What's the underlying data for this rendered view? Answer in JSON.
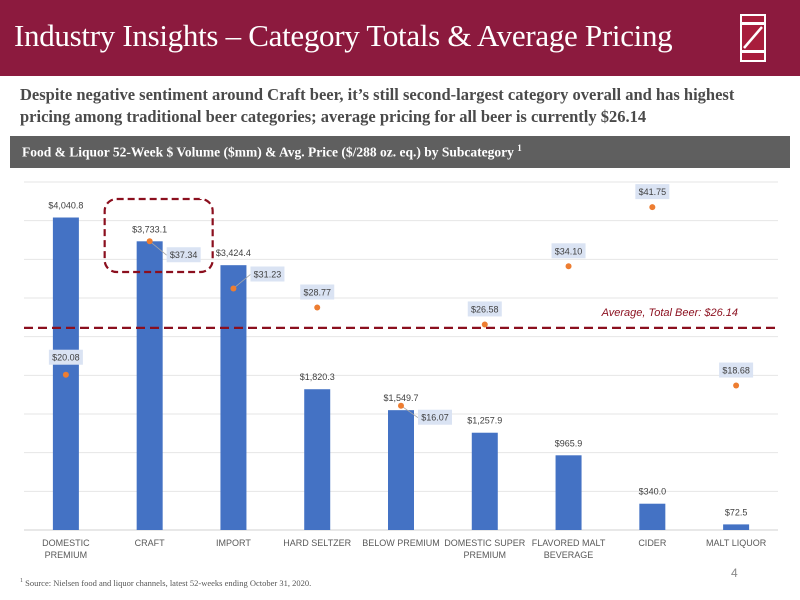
{
  "header": {
    "title": "Industry Insights – Category Totals & Average Pricing",
    "logo": "z-logo-icon"
  },
  "subtitle": "Despite negative sentiment around Craft beer, it’s still second-largest category overall and has highest pricing among traditional beer categories; average pricing for all beer is currently $26.14",
  "banner": {
    "text": "Food & Liquor 52-Week $ Volume ($mm) & Avg. Price ($/288 oz. eq.) by Subcategory",
    "footnote_marker": "1"
  },
  "chart_data": {
    "type": "bar",
    "title": "Food & Liquor 52-Week $ Volume ($mm) & Avg. Price ($/288 oz. eq.) by Subcategory",
    "xlabel": "",
    "ylabel": "",
    "grid": true,
    "categories": [
      [
        "DOMESTIC",
        "PREMIUM"
      ],
      [
        "CRAFT"
      ],
      [
        "IMPORT"
      ],
      [
        "HARD SELTZER"
      ],
      [
        "BELOW PREMIUM"
      ],
      [
        "DOMESTIC SUPER",
        "PREMIUM"
      ],
      [
        "FLAVORED MALT",
        "BEVERAGE"
      ],
      [
        "CIDER"
      ],
      [
        "MALT LIQUOR"
      ]
    ],
    "series": [
      {
        "name": "$ Volume ($mm)",
        "type": "bar",
        "axis": "primary",
        "color": "#4472c4",
        "values": [
          4040.8,
          3733.1,
          3424.4,
          1820.3,
          1549.7,
          1257.9,
          965.9,
          340.0,
          72.5
        ],
        "labels": [
          "$4,040.8",
          "$3,733.1",
          "$3,424.4",
          "$1,820.3",
          "$1,549.7",
          "$1,257.9",
          "$965.9",
          "$340.0",
          "$72.5"
        ]
      },
      {
        "name": "Avg. Price ($/288 oz. eq.)",
        "type": "scatter",
        "axis": "secondary",
        "color": "#ed7d31",
        "values": [
          20.08,
          37.34,
          31.23,
          28.77,
          16.07,
          26.58,
          34.1,
          41.75,
          18.68
        ],
        "labels": [
          "$20.08",
          "$37.34",
          "$31.23",
          "$28.77",
          "$16.07",
          "$26.58",
          "$34.10",
          "$41.75",
          "$18.68"
        ]
      }
    ],
    "ylim": [
      0,
      4500
    ],
    "y2lim": [
      0,
      45
    ],
    "reference_line": {
      "label": "Average, Total Beer: $26.14",
      "value": 26.14,
      "axis": "secondary",
      "color": "#8b0f1e"
    },
    "highlight": {
      "category_index": 1,
      "style": "dashed-rounded-box",
      "color": "#8b0f1e"
    }
  },
  "footnote": {
    "marker": "1",
    "text": "Source: Nielsen food and liquor channels, latest 52-weeks ending October 31, 2020."
  },
  "page_number": "4"
}
